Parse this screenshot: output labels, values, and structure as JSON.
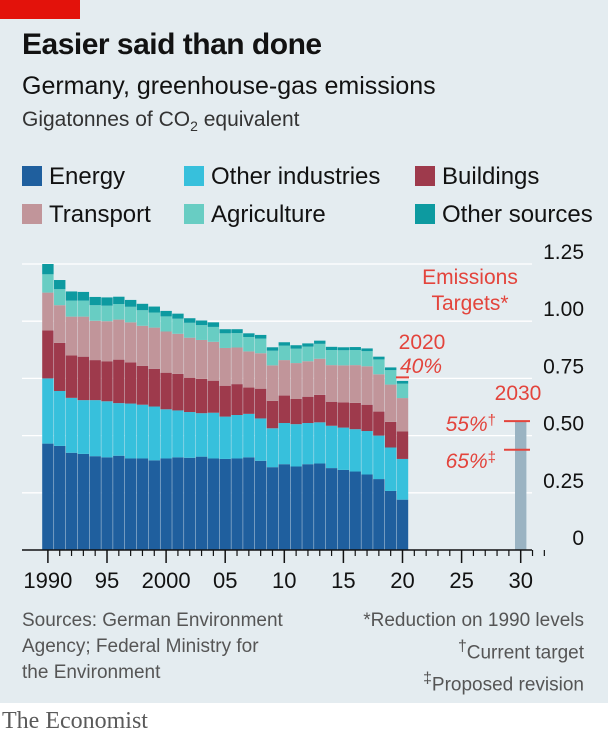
{
  "header": {
    "title": "Easier said than done",
    "subtitle": "Germany, greenhouse-gas emissions",
    "unit_prefix": "Gigatonnes of CO",
    "unit_sub": "2",
    "unit_suffix": " equivalent"
  },
  "legend": [
    {
      "label": "Energy",
      "color": "#1f5f9e"
    },
    {
      "label": "Other industries",
      "color": "#37c0dc"
    },
    {
      "label": "Buildings",
      "color": "#9e3a4c"
    },
    {
      "label": "Transport",
      "color": "#c1959a"
    },
    {
      "label": "Agriculture",
      "color": "#68cdc3"
    },
    {
      "label": "Other sources",
      "color": "#0d9aa0"
    }
  ],
  "annotations": {
    "targets_line1": "Emissions",
    "targets_line2": "Targets*",
    "y2020": "2020",
    "pct2020": "40%",
    "y2030": "2030",
    "pct2030_current": "55%",
    "dagger": "†",
    "pct2030_proposed": "65%",
    "ddagger": "‡"
  },
  "sources": {
    "left": [
      "Sources: German Environment",
      "Agency; Federal Ministry for",
      "the Environment"
    ],
    "right1": "*Reduction on 1990 levels",
    "right2_mark": "†",
    "right2_text": "Current target",
    "right3_mark": "‡",
    "right3_text": "Proposed revision"
  },
  "footer": "The Economist",
  "chart_data": {
    "type": "bar",
    "stacked": true,
    "x": [
      1990,
      1991,
      1992,
      1993,
      1994,
      1995,
      1996,
      1997,
      1998,
      1999,
      2000,
      2001,
      2002,
      2003,
      2004,
      2005,
      2006,
      2007,
      2008,
      2009,
      2010,
      2011,
      2012,
      2013,
      2014,
      2015,
      2016,
      2017,
      2018,
      2019,
      2020
    ],
    "xlim": [
      1990,
      2032
    ],
    "x_tick_labels": [
      {
        "x": 1990,
        "label": "1990"
      },
      {
        "x": 1995,
        "label": "95"
      },
      {
        "x": 2000,
        "label": "2000"
      },
      {
        "x": 2005,
        "label": "05"
      },
      {
        "x": 2010,
        "label": "10"
      },
      {
        "x": 2015,
        "label": "15"
      },
      {
        "x": 2020,
        "label": "20"
      },
      {
        "x": 2025,
        "label": "25"
      },
      {
        "x": 2030,
        "label": "30"
      }
    ],
    "ylim": [
      0,
      1.25
    ],
    "y_ticks": [
      0,
      0.25,
      0.5,
      0.75,
      1.0,
      1.25
    ],
    "y_tick_labels": [
      "0",
      "0.25",
      "0.50",
      "0.75",
      "1.00",
      "1.25"
    ],
    "grid": true,
    "legend_position": "top",
    "series": [
      {
        "name": "Energy",
        "color": "#1f5f9e",
        "values": [
          0.465,
          0.455,
          0.425,
          0.42,
          0.41,
          0.405,
          0.412,
          0.4,
          0.4,
          0.392,
          0.4,
          0.405,
          0.403,
          0.408,
          0.4,
          0.398,
          0.4,
          0.405,
          0.39,
          0.362,
          0.375,
          0.365,
          0.375,
          0.378,
          0.358,
          0.35,
          0.343,
          0.33,
          0.31,
          0.258,
          0.22
        ]
      },
      {
        "name": "Other industries",
        "color": "#37c0dc",
        "values": [
          0.285,
          0.24,
          0.24,
          0.235,
          0.245,
          0.245,
          0.23,
          0.24,
          0.235,
          0.235,
          0.215,
          0.205,
          0.2,
          0.19,
          0.2,
          0.185,
          0.19,
          0.19,
          0.185,
          0.17,
          0.18,
          0.185,
          0.18,
          0.18,
          0.185,
          0.185,
          0.185,
          0.19,
          0.19,
          0.19,
          0.178
        ]
      },
      {
        "name": "Buildings",
        "color": "#9e3a4c",
        "values": [
          0.21,
          0.21,
          0.185,
          0.19,
          0.175,
          0.175,
          0.19,
          0.18,
          0.17,
          0.165,
          0.16,
          0.16,
          0.15,
          0.15,
          0.14,
          0.135,
          0.135,
          0.115,
          0.13,
          0.12,
          0.12,
          0.11,
          0.115,
          0.12,
          0.105,
          0.11,
          0.115,
          0.115,
          0.105,
          0.112,
          0.12
        ]
      },
      {
        "name": "Transport",
        "color": "#c1959a",
        "values": [
          0.165,
          0.165,
          0.17,
          0.175,
          0.172,
          0.175,
          0.175,
          0.175,
          0.175,
          0.18,
          0.18,
          0.175,
          0.175,
          0.17,
          0.17,
          0.165,
          0.16,
          0.158,
          0.155,
          0.155,
          0.155,
          0.157,
          0.155,
          0.158,
          0.16,
          0.162,
          0.165,
          0.168,
          0.163,
          0.163,
          0.146
        ]
      },
      {
        "name": "Agriculture",
        "color": "#68cdc3",
        "values": [
          0.08,
          0.07,
          0.07,
          0.07,
          0.068,
          0.068,
          0.068,
          0.068,
          0.068,
          0.066,
          0.066,
          0.066,
          0.065,
          0.065,
          0.065,
          0.064,
          0.063,
          0.063,
          0.064,
          0.064,
          0.063,
          0.063,
          0.064,
          0.065,
          0.066,
          0.066,
          0.066,
          0.066,
          0.065,
          0.063,
          0.063
        ]
      },
      {
        "name": "Other sources",
        "color": "#0d9aa0",
        "values": [
          0.045,
          0.04,
          0.04,
          0.038,
          0.036,
          0.036,
          0.032,
          0.03,
          0.028,
          0.026,
          0.024,
          0.022,
          0.02,
          0.02,
          0.02,
          0.018,
          0.017,
          0.016,
          0.016,
          0.015,
          0.015,
          0.015,
          0.014,
          0.014,
          0.014,
          0.013,
          0.013,
          0.012,
          0.012,
          0.012,
          0.012
        ]
      }
    ],
    "target_2030": {
      "x": 2030,
      "current": 0.563,
      "proposed": 0.438
    },
    "target_2020": {
      "x": 2020,
      "value": 0.75
    }
  }
}
